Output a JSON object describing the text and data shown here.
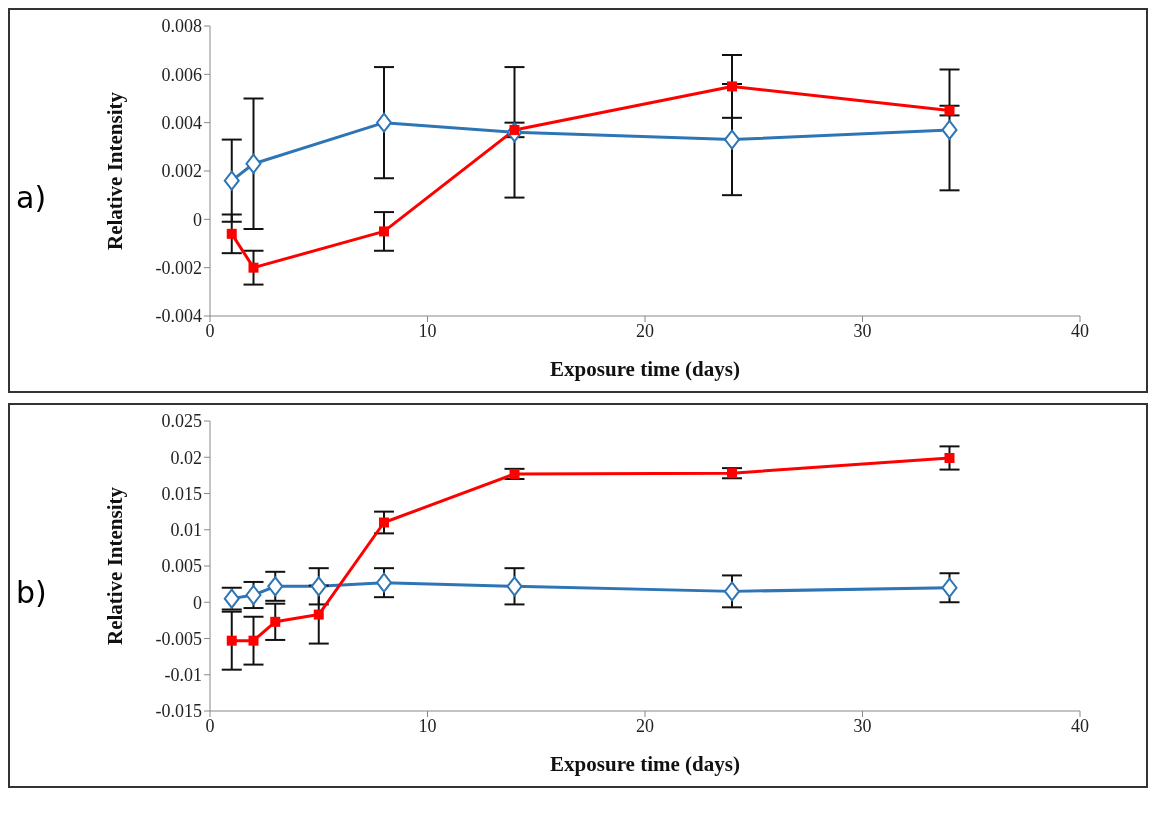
{
  "chart_data": [
    {
      "type": "line",
      "annotations": [
        "a)"
      ],
      "xlabel": "Exposure time (days)",
      "ylabel": "Relative Intensity",
      "xlim": [
        0,
        40
      ],
      "xticks": [
        0,
        10,
        20,
        30,
        40
      ],
      "ylim": [
        -0.004,
        0.008
      ],
      "yticks": [
        -0.004,
        -0.002,
        0,
        0.002,
        0.004,
        0.006,
        0.008
      ],
      "grid": false,
      "line_style": "solid",
      "series": [
        {
          "color": "#2e75b6",
          "marker": "diamond",
          "x": [
            1,
            2,
            8,
            14,
            24,
            34
          ],
          "values": [
            0.0016,
            0.0023,
            0.004,
            0.0036,
            0.0033,
            0.0037
          ],
          "errors": [
            0.0017,
            0.0027,
            0.0023,
            0.0027,
            0.0023,
            0.0025
          ]
        },
        {
          "color": "#ff0000",
          "marker": "square",
          "x": [
            1,
            2,
            8,
            14,
            24,
            34
          ],
          "values": [
            -0.0006,
            -0.002,
            -0.0005,
            0.0037,
            0.0055,
            0.0045
          ],
          "errors": [
            0.0008,
            0.0007,
            0.0008,
            0.0003,
            0.0013,
            0.0002
          ]
        }
      ]
    },
    {
      "type": "line",
      "annotations": [
        "b)"
      ],
      "xlabel": "Exposure time (days)",
      "ylabel": "Relative Intensity",
      "xlim": [
        0,
        40
      ],
      "xticks": [
        0,
        10,
        20,
        30,
        40
      ],
      "ylim": [
        -0.015,
        0.025
      ],
      "yticks": [
        -0.015,
        -0.01,
        -0.005,
        0,
        0.005,
        0.01,
        0.015,
        0.02,
        0.025
      ],
      "grid": false,
      "line_style": "solid",
      "series": [
        {
          "color": "#2e75b6",
          "marker": "diamond",
          "x": [
            1,
            2,
            3,
            5,
            8,
            14,
            24,
            34
          ],
          "values": [
            0.0005,
            0.001,
            0.0022,
            0.0022,
            0.0027,
            0.0022,
            0.0015,
            0.002
          ],
          "errors": [
            0.0015,
            0.0018,
            0.002,
            0.0025,
            0.002,
            0.0025,
            0.0022,
            0.002
          ]
        },
        {
          "color": "#ff0000",
          "marker": "square",
          "x": [
            1,
            2,
            3,
            5,
            8,
            14,
            24,
            34
          ],
          "values": [
            -0.0053,
            -0.0053,
            -0.0027,
            -0.0017,
            0.011,
            0.0177,
            0.0178,
            0.0199
          ],
          "errors": [
            0.004,
            0.0033,
            0.0025,
            0.004,
            0.0015,
            0.0007,
            0.0007,
            0.0016
          ]
        }
      ]
    }
  ]
}
